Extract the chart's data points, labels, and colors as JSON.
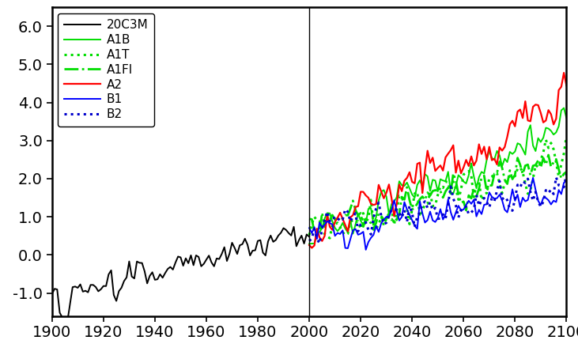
{
  "title": "",
  "xlim": [
    1900,
    2100
  ],
  "ylim": [
    -1.6,
    6.5
  ],
  "yticks": [
    -1.0,
    0.0,
    1.0,
    2.0,
    3.0,
    4.0,
    5.0,
    6.0
  ],
  "ytick_labels": [
    "-1.0",
    "0.0",
    "1.0",
    "2.0",
    "3.0",
    "4.0",
    "5.0",
    "6.0"
  ],
  "xticks": [
    1900,
    1920,
    1940,
    1960,
    1980,
    2000,
    2020,
    2040,
    2060,
    2080,
    2100
  ],
  "vline_x": 2000,
  "series": {
    "20C3M": {
      "color": "#000000",
      "linestyle": "solid",
      "linewidth": 1.4
    },
    "A1B": {
      "color": "#00dd00",
      "linestyle": "solid",
      "linewidth": 1.4
    },
    "A1T": {
      "color": "#00dd00",
      "linestyle": "dotted",
      "linewidth": 2.2
    },
    "A1FI": {
      "color": "#00dd00",
      "linestyle": "dashdot",
      "linewidth": 2.0
    },
    "A2": {
      "color": "#ff0000",
      "linestyle": "solid",
      "linewidth": 1.6
    },
    "B1": {
      "color": "#0000ff",
      "linestyle": "solid",
      "linewidth": 1.4
    },
    "B2": {
      "color": "#0000cc",
      "linestyle": "dotted",
      "linewidth": 2.2
    }
  },
  "background_color": "#ffffff",
  "tick_fontsize": 14,
  "legend_fontsize": 11,
  "figsize": [
    7.31,
    4.54
  ],
  "dpi": 100
}
